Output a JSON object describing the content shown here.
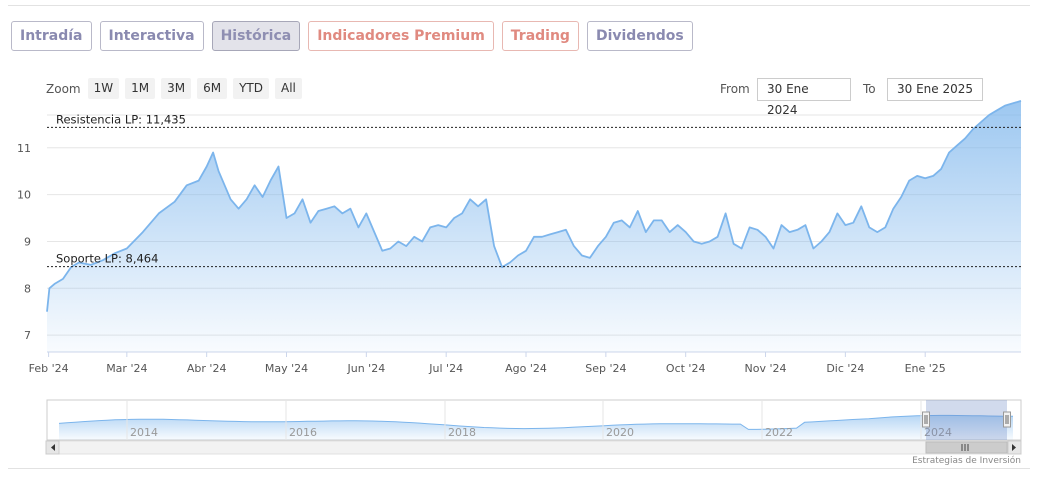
{
  "tabs": [
    {
      "label": "Intradía",
      "style": "normal"
    },
    {
      "label": "Interactiva",
      "style": "normal"
    },
    {
      "label": "Histórica",
      "style": "active"
    },
    {
      "label": "Indicadores Premium",
      "style": "red"
    },
    {
      "label": "Trading",
      "style": "red"
    },
    {
      "label": "Dividendos",
      "style": "normal"
    }
  ],
  "zoom": {
    "label": "Zoom",
    "buttons": [
      "1W",
      "1M",
      "3M",
      "6M",
      "YTD",
      "All"
    ]
  },
  "range": {
    "from_label": "From",
    "from_value": "30 Ene 2024",
    "to_label": "To",
    "to_value": "30 Ene 2025"
  },
  "credit": "Estrategias de Inversión",
  "colors": {
    "line": "#7cb5ec",
    "fill_top": "#7cb5ec",
    "tab_text": "#8a8ab0",
    "tab_red": "#e08a80"
  },
  "chart_data": {
    "type": "area",
    "title": "",
    "xlabel": "",
    "ylabel": "",
    "ylim": [
      7,
      11.5
    ],
    "y_ticks": [
      "7",
      "8",
      "9",
      "10",
      "11"
    ],
    "x_ticks": [
      {
        "label": "Feb '24",
        "x": 0.02
      },
      {
        "label": "Mar '24",
        "x": 1.0
      },
      {
        "label": "Abr '24",
        "x": 2.0
      },
      {
        "label": "May '24",
        "x": 3.0
      },
      {
        "label": "Jun '24",
        "x": 4.0
      },
      {
        "label": "Jul '24",
        "x": 5.0
      },
      {
        "label": "Ago '24",
        "x": 6.0
      },
      {
        "label": "Sep '24",
        "x": 7.0
      },
      {
        "label": "Oct '24",
        "x": 8.0
      },
      {
        "label": "Nov '24",
        "x": 9.0
      },
      {
        "label": "Dic '24",
        "x": 10.0
      },
      {
        "label": "Ene '25",
        "x": 11.0
      }
    ],
    "xlim": [
      0,
      13.0
    ],
    "grid": true,
    "legend": "none",
    "reference_lines": [
      {
        "label": "Resistencia LP: 11,435",
        "value": 11.435
      },
      {
        "label": "Soporte LP: 8,464",
        "value": 8.464
      }
    ],
    "series": [
      {
        "x": [
          0,
          0.03,
          0.1,
          0.2,
          0.3,
          0.4,
          0.55,
          0.7,
          0.85,
          1.0,
          1.2,
          1.4,
          1.6,
          1.75,
          1.9,
          2.0,
          2.08,
          2.15,
          2.3,
          2.4,
          2.5,
          2.6,
          2.7,
          2.8,
          2.9,
          3.0,
          3.1,
          3.2,
          3.3,
          3.4,
          3.5,
          3.6,
          3.7,
          3.8,
          3.9,
          4.0,
          4.1,
          4.2,
          4.3,
          4.4,
          4.5,
          4.6,
          4.7,
          4.8,
          4.9,
          5.0,
          5.1,
          5.2,
          5.3,
          5.4,
          5.5,
          5.6,
          5.7,
          5.8,
          5.9,
          6.0,
          6.1,
          6.2,
          6.3,
          6.4,
          6.5,
          6.6,
          6.7,
          6.8,
          6.9,
          7.0,
          7.1,
          7.2,
          7.3,
          7.4,
          7.5,
          7.6,
          7.7,
          7.8,
          7.9,
          8.0,
          8.1,
          8.2,
          8.3,
          8.4,
          8.5,
          8.6,
          8.7,
          8.8,
          8.9,
          9.0,
          9.1,
          9.2,
          9.3,
          9.4,
          9.5,
          9.6,
          9.7,
          9.8,
          9.9,
          10.0,
          10.1,
          10.2,
          10.3,
          10.4,
          10.5,
          10.6,
          10.7,
          10.8,
          10.9,
          11.0,
          11.1,
          11.2,
          11.3,
          11.4,
          11.5,
          11.6,
          11.7,
          11.8,
          11.9,
          12.0,
          12.1,
          12.2
        ],
        "values": [
          7.5,
          8.0,
          8.1,
          8.2,
          8.45,
          8.55,
          8.5,
          8.6,
          8.75,
          8.85,
          9.2,
          9.6,
          9.85,
          10.2,
          10.3,
          10.6,
          10.9,
          10.5,
          9.9,
          9.7,
          9.9,
          10.2,
          9.95,
          10.3,
          10.6,
          9.5,
          9.6,
          9.9,
          9.4,
          9.65,
          9.7,
          9.75,
          9.6,
          9.7,
          9.3,
          9.6,
          9.2,
          8.8,
          8.85,
          9.0,
          8.9,
          9.1,
          9.0,
          9.3,
          9.35,
          9.3,
          9.5,
          9.6,
          9.9,
          9.75,
          9.9,
          8.9,
          8.45,
          8.55,
          8.7,
          8.8,
          9.1,
          9.1,
          9.15,
          9.2,
          9.25,
          8.9,
          8.7,
          8.65,
          8.9,
          9.1,
          9.4,
          9.45,
          9.3,
          9.65,
          9.2,
          9.45,
          9.45,
          9.2,
          9.35,
          9.2,
          9.0,
          8.95,
          9.0,
          9.1,
          9.6,
          8.95,
          8.85,
          9.3,
          9.25,
          9.1,
          8.85,
          9.35,
          9.2,
          9.25,
          9.35,
          8.85,
          9.0,
          9.2,
          9.6,
          9.35,
          9.4,
          9.75,
          9.3,
          9.2,
          9.3,
          9.7,
          9.95,
          10.3,
          10.4,
          10.35,
          10.4,
          10.55,
          10.9,
          11.05,
          11.2,
          11.4,
          11.55,
          11.7,
          11.8,
          11.9,
          11.95,
          12.0
        ]
      }
    ],
    "navigator": {
      "year_labels": [
        "2014",
        "2016",
        "2018",
        "2020",
        "2022",
        "2024"
      ]
    }
  }
}
